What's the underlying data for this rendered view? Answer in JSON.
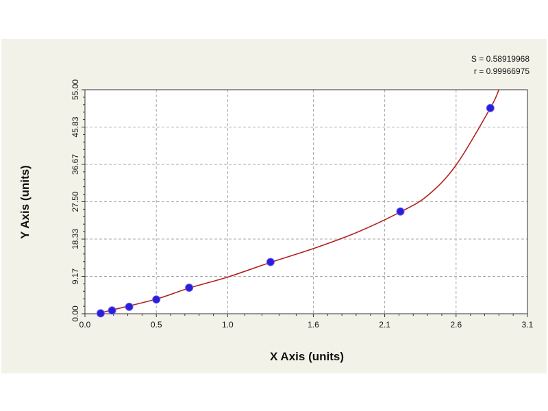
{
  "chart_data": {
    "type": "scatter",
    "xlabel": "X Axis (units)",
    "ylabel": "Y Axis (units)",
    "xlim": [
      0.0,
      3.1
    ],
    "ylim": [
      0.0,
      55.0
    ],
    "x_ticks": [
      0.0,
      0.5,
      1.0,
      1.6,
      2.1,
      2.6,
      3.1
    ],
    "x_tick_labels": [
      "0.0",
      "0.5",
      "1.0",
      "1.6",
      "2.1",
      "2.6",
      "3.1"
    ],
    "y_ticks": [
      0.0,
      9.17,
      18.33,
      27.5,
      36.67,
      45.83,
      55.0
    ],
    "y_tick_labels": [
      "0.00",
      "9.17",
      "18.33",
      "27.50",
      "36.67",
      "45.83",
      "55.00"
    ],
    "grid": true,
    "points": [
      {
        "x": 0.11,
        "y": 0.1
      },
      {
        "x": 0.19,
        "y": 0.8
      },
      {
        "x": 0.31,
        "y": 1.7
      },
      {
        "x": 0.5,
        "y": 3.5
      },
      {
        "x": 0.73,
        "y": 6.4
      },
      {
        "x": 1.3,
        "y": 12.7
      },
      {
        "x": 2.21,
        "y": 25.1
      },
      {
        "x": 2.84,
        "y": 50.5
      }
    ],
    "fit_curve": [
      {
        "x": 0.0,
        "y": -1.0
      },
      {
        "x": 0.1,
        "y": 0.1
      },
      {
        "x": 0.2,
        "y": 1.0
      },
      {
        "x": 0.5,
        "y": 3.6
      },
      {
        "x": 0.73,
        "y": 6.3
      },
      {
        "x": 1.0,
        "y": 9.0
      },
      {
        "x": 1.3,
        "y": 12.6
      },
      {
        "x": 1.6,
        "y": 16.0
      },
      {
        "x": 1.9,
        "y": 19.9
      },
      {
        "x": 2.21,
        "y": 25.0
      },
      {
        "x": 2.4,
        "y": 29.0
      },
      {
        "x": 2.6,
        "y": 36.5
      },
      {
        "x": 2.84,
        "y": 50.5
      },
      {
        "x": 2.9,
        "y": 55.0
      }
    ],
    "stats": {
      "s_label": "S = 0.58919968",
      "r_label": "r = 0.99966975"
    },
    "colors": {
      "marker": "#2a1ed6",
      "fit_line": "#b3211c",
      "grid": "#a6a6a6",
      "panel": "#f2f2e9"
    }
  }
}
